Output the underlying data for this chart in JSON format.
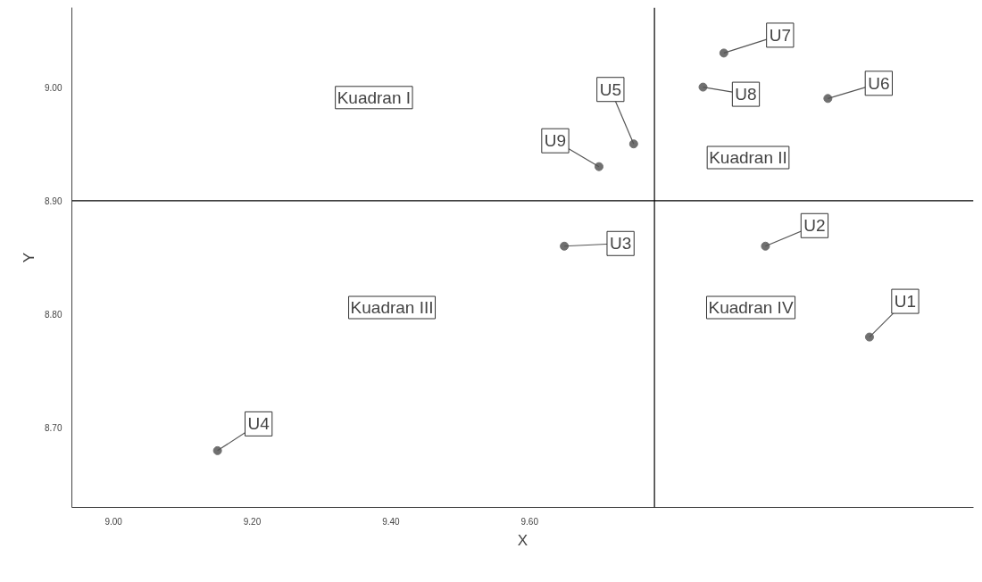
{
  "chart_data": {
    "type": "scatter",
    "xlabel": "X",
    "ylabel": "Y",
    "xlim": [
      8.94,
      10.24
    ],
    "ylim": [
      8.63,
      9.07
    ],
    "xticks": [
      {
        "value": 9.0,
        "label": "9.00"
      },
      {
        "value": 9.2,
        "label": "9.20"
      },
      {
        "value": 9.4,
        "label": "9.40"
      },
      {
        "value": 9.6,
        "label": "9.60"
      }
    ],
    "yticks": [
      {
        "value": 8.7,
        "label": "8.70"
      },
      {
        "value": 8.8,
        "label": "8.80"
      },
      {
        "value": 8.9,
        "label": "8.90"
      },
      {
        "value": 9.0,
        "label": "9.00"
      }
    ],
    "grid": false,
    "legend": false,
    "marker": "circle",
    "series": [
      {
        "name": "U1",
        "color": "#707070",
        "x": [
          10.09
        ],
        "values": [
          8.78
        ]
      },
      {
        "name": "U2",
        "color": "#707070",
        "x": [
          9.94
        ],
        "values": [
          8.86
        ]
      },
      {
        "name": "U3",
        "color": "#707070",
        "x": [
          9.65
        ],
        "values": [
          8.86
        ]
      },
      {
        "name": "U4",
        "color": "#707070",
        "x": [
          9.15
        ],
        "values": [
          8.68
        ]
      },
      {
        "name": "U5",
        "color": "#707070",
        "x": [
          9.75
        ],
        "values": [
          8.95
        ]
      },
      {
        "name": "U6",
        "color": "#707070",
        "x": [
          10.03
        ],
        "values": [
          8.99
        ]
      },
      {
        "name": "U7",
        "color": "#707070",
        "x": [
          9.88
        ],
        "values": [
          9.03
        ]
      },
      {
        "name": "U8",
        "color": "#707070",
        "x": [
          9.85
        ],
        "values": [
          9.0
        ]
      },
      {
        "name": "U9",
        "color": "#707070",
        "x": [
          9.7
        ],
        "values": [
          8.93
        ]
      }
    ],
    "ref_lines": [
      {
        "axis": "x",
        "value": 9.78,
        "color": "#000000"
      },
      {
        "axis": "y",
        "value": 8.9,
        "color": "#000000"
      }
    ],
    "annotations": [
      "Kuadran I",
      "Kuadran II",
      "Kuadran III",
      "Kuadran IV"
    ]
  }
}
